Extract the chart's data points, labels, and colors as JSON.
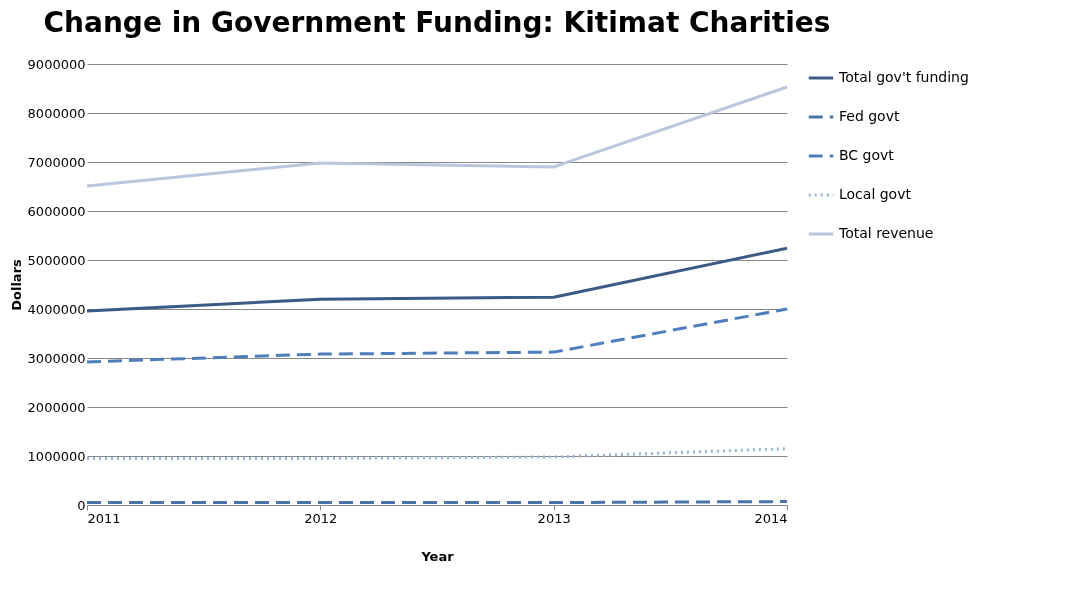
{
  "chart_data": {
    "type": "line",
    "title": "Change in Government Funding: Kitimat Charities",
    "xlabel": "Year",
    "ylabel": "Dollars",
    "x": [
      2011,
      2012,
      2013,
      2014
    ],
    "xlim": [
      2011,
      2014
    ],
    "xticks": [
      2011,
      2012,
      2013,
      2014
    ],
    "ylim": [
      0,
      9000000
    ],
    "yticks": [
      0,
      1000000,
      2000000,
      3000000,
      4000000,
      5000000,
      6000000,
      7000000,
      8000000,
      9000000
    ],
    "grid": "y",
    "legend": "right",
    "marker": "none",
    "series": [
      {
        "name": "Total gov't funding",
        "color": "#3b5a85",
        "line_style": "solid",
        "values": [
          3960000,
          4200000,
          4240000,
          5240000
        ]
      },
      {
        "name": "Fed govt",
        "color": "#4a74a8",
        "line_style": "dashed",
        "values": [
          50000,
          50000,
          50000,
          70000
        ]
      },
      {
        "name": "BC govt",
        "color": "#4f7fba",
        "line_style": "dashed",
        "values": [
          2920000,
          3080000,
          3120000,
          4000000
        ]
      },
      {
        "name": "Local govt",
        "color": "#95b3d7",
        "line_style": "dotted",
        "values": [
          950000,
          950000,
          980000,
          1150000
        ]
      },
      {
        "name": "Total revenue",
        "color": "#b9c7dc",
        "line_style": "solid",
        "values": [
          6510000,
          6980000,
          6900000,
          8530000
        ]
      }
    ]
  }
}
